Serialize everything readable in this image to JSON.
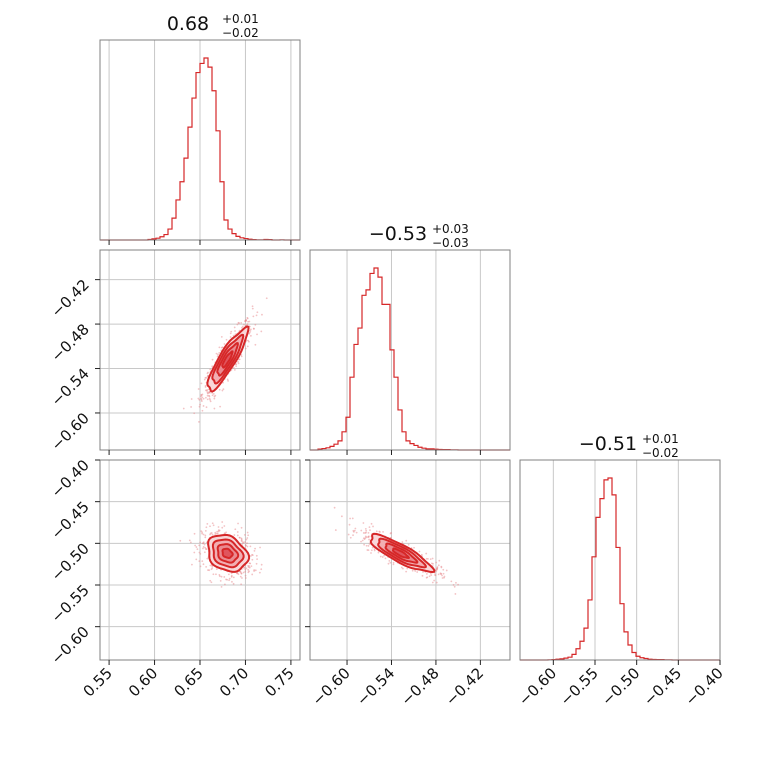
{
  "chart_data": {
    "type": "corner",
    "color": "#d62728",
    "parameters": [
      {
        "title": "0.68",
        "err_plus": "+0.01",
        "err_minus": "−0.02",
        "median": 0.68,
        "sigma": 0.011,
        "range": [
          0.54,
          0.76
        ],
        "ticks": [
          0.55,
          0.6,
          0.65,
          0.7,
          0.75
        ],
        "tick_labels": [
          "0.55",
          "0.60",
          "0.65",
          "0.70",
          "0.75"
        ]
      },
      {
        "title": "−0.53",
        "err_plus": "+0.03",
        "err_minus": "−0.03",
        "median": -0.528,
        "sigma": 0.021,
        "range": [
          -0.65,
          -0.38
        ],
        "ticks": [
          -0.6,
          -0.54,
          -0.48,
          -0.42
        ],
        "tick_labels": [
          "−0.60",
          "−0.54",
          "−0.48",
          "−0.42"
        ]
      },
      {
        "title": "−0.51",
        "err_plus": "+0.01",
        "err_minus": "−0.02",
        "median": -0.512,
        "sigma": 0.011,
        "range": [
          -0.64,
          -0.4
        ],
        "ticks": [
          -0.6,
          -0.55,
          -0.5,
          -0.45,
          -0.4
        ],
        "tick_labels": [
          "−0.60",
          "−0.55",
          "−0.50",
          "−0.45",
          "−0.40"
        ]
      }
    ],
    "histograms": [
      {
        "param": 0,
        "bin_start": 0.54,
        "bin_width": 0.0044,
        "counts": [
          0,
          0,
          0,
          0,
          0,
          0,
          0,
          0,
          0,
          0,
          0,
          0,
          0.003,
          0.006,
          0.01,
          0.018,
          0.03,
          0.06,
          0.12,
          0.22,
          0.32,
          0.45,
          0.62,
          0.78,
          0.92,
          0.97,
          1.0,
          0.95,
          0.82,
          0.6,
          0.32,
          0.11,
          0.06,
          0.035,
          0.02,
          0.012,
          0.008,
          0.004,
          0.002,
          0.001,
          0.001,
          0.003,
          0.002,
          0.0,
          0.0,
          0.001,
          0.0,
          0.0,
          0.0,
          0.0
        ]
      },
      {
        "param": 1,
        "bin_start": -0.65,
        "bin_width": 0.0054,
        "counts": [
          0,
          0,
          0.005,
          0.008,
          0.012,
          0.02,
          0.032,
          0.05,
          0.1,
          0.18,
          0.4,
          0.58,
          0.67,
          0.85,
          0.88,
          0.97,
          1.0,
          0.95,
          0.8,
          0.8,
          0.55,
          0.4,
          0.22,
          0.1,
          0.05,
          0.035,
          0.025,
          0.015,
          0.01,
          0.006,
          0.006,
          0.004,
          0.003,
          0.002,
          0.002,
          0.001,
          0.001,
          0.0,
          0.0,
          0.0,
          0.0,
          0.0,
          0.0,
          0.0,
          0.0,
          0.0,
          0.0,
          0.0,
          0.0,
          0.0
        ]
      },
      {
        "param": 2,
        "bin_start": -0.64,
        "bin_width": 0.0048,
        "counts": [
          0,
          0,
          0,
          0,
          0,
          0,
          0,
          0.001,
          0.002,
          0.004,
          0.006,
          0.01,
          0.015,
          0.03,
          0.06,
          0.1,
          0.17,
          0.32,
          0.55,
          0.76,
          0.86,
          0.96,
          0.97,
          0.88,
          0.6,
          0.3,
          0.15,
          0.08,
          0.04,
          0.02,
          0.012,
          0.008,
          0.004,
          0.003,
          0.002,
          0.002,
          0.001,
          0.001,
          0.0,
          0.0,
          0.0,
          0.0,
          0.0,
          0.0,
          0.0,
          0.0,
          0.0,
          0.0,
          0.0,
          0.0
        ]
      }
    ],
    "pairs": [
      {
        "x_param": 0,
        "y_param": 1,
        "correlation": 0.88
      },
      {
        "x_param": 0,
        "y_param": 2,
        "correlation": -0.25
      },
      {
        "x_param": 1,
        "y_param": 2,
        "correlation": -0.85
      }
    ],
    "contour_levels_sigma": [
      0.5,
      1.0,
      1.5,
      2.0
    ],
    "grid": true
  }
}
